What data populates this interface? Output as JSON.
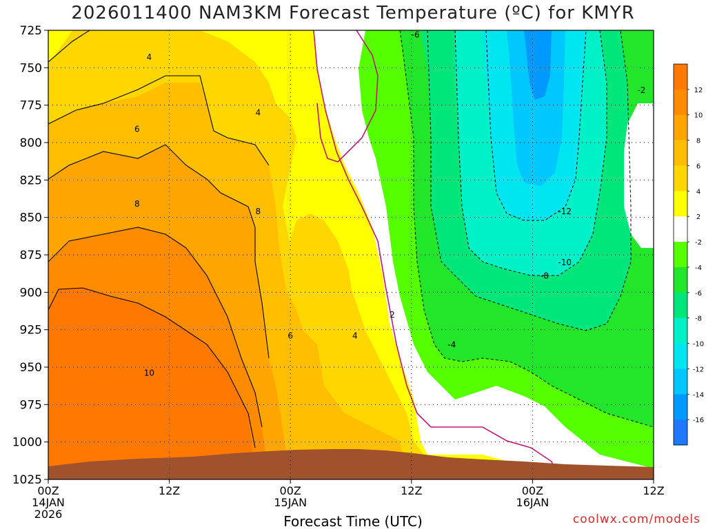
{
  "title": "2026011400 NAM3KM Forecast Temperature (ºC) for KMYR",
  "credit": "coolwx.com/models",
  "chart_data": {
    "type": "contour",
    "xlabel": "Forecast Time (UTC)",
    "x_ticks": [
      {
        "hour": 0,
        "labels": [
          "00Z",
          "14JAN",
          "2026"
        ]
      },
      {
        "hour": 12,
        "labels": [
          "12Z"
        ]
      },
      {
        "hour": 24,
        "labels": [
          "00Z",
          "15JAN"
        ]
      },
      {
        "hour": 36,
        "labels": [
          "12Z"
        ]
      },
      {
        "hour": 48,
        "labels": [
          "00Z",
          "16JAN"
        ]
      },
      {
        "hour": 60,
        "labels": [
          "12Z"
        ]
      }
    ],
    "xlim": [
      0,
      60
    ],
    "ylim": [
      725,
      1025
    ],
    "y_ticks": [
      725,
      750,
      775,
      800,
      825,
      850,
      875,
      900,
      925,
      950,
      975,
      1000,
      1025
    ],
    "grid": "dotted",
    "colorbar": {
      "levels": [
        12,
        10,
        8,
        6,
        4,
        2,
        -2,
        -4,
        -6,
        -8,
        -10,
        -12,
        -14,
        -16
      ],
      "colors": [
        "#ff7800",
        "#ff8c00",
        "#ffa500",
        "#ffbf00",
        "#ffd700",
        "#ffff00",
        "#ffffff",
        "#55ff00",
        "#22e62a",
        "#00e67a",
        "#00f0c8",
        "#00e6f0",
        "#00c8ff",
        "#0099ff",
        "#1e78ff"
      ]
    },
    "contour_labels": [
      {
        "hour": 10.0,
        "p": 743,
        "text": "4"
      },
      {
        "hour": 8.8,
        "p": 791,
        "text": "6"
      },
      {
        "hour": 8.8,
        "p": 841,
        "text": "8"
      },
      {
        "hour": 10.0,
        "p": 954,
        "text": "10"
      },
      {
        "hour": 20.8,
        "p": 780,
        "text": "4"
      },
      {
        "hour": 20.8,
        "p": 846,
        "text": "8"
      },
      {
        "hour": 24.0,
        "p": 929,
        "text": "6"
      },
      {
        "hour": 30.4,
        "p": 929,
        "text": "4"
      },
      {
        "hour": 34.1,
        "p": 915,
        "text": "2"
      },
      {
        "hour": 36.4,
        "p": 728,
        "text": "-6"
      },
      {
        "hour": 40.0,
        "p": 935,
        "text": "-4"
      },
      {
        "hour": 49.2,
        "p": 889,
        "text": "-8"
      },
      {
        "hour": 51.2,
        "p": 880,
        "text": "-10"
      },
      {
        "hour": 51.2,
        "p": 846,
        "text": "-12"
      },
      {
        "hour": 58.8,
        "p": 765,
        "text": "-2"
      }
    ]
  }
}
